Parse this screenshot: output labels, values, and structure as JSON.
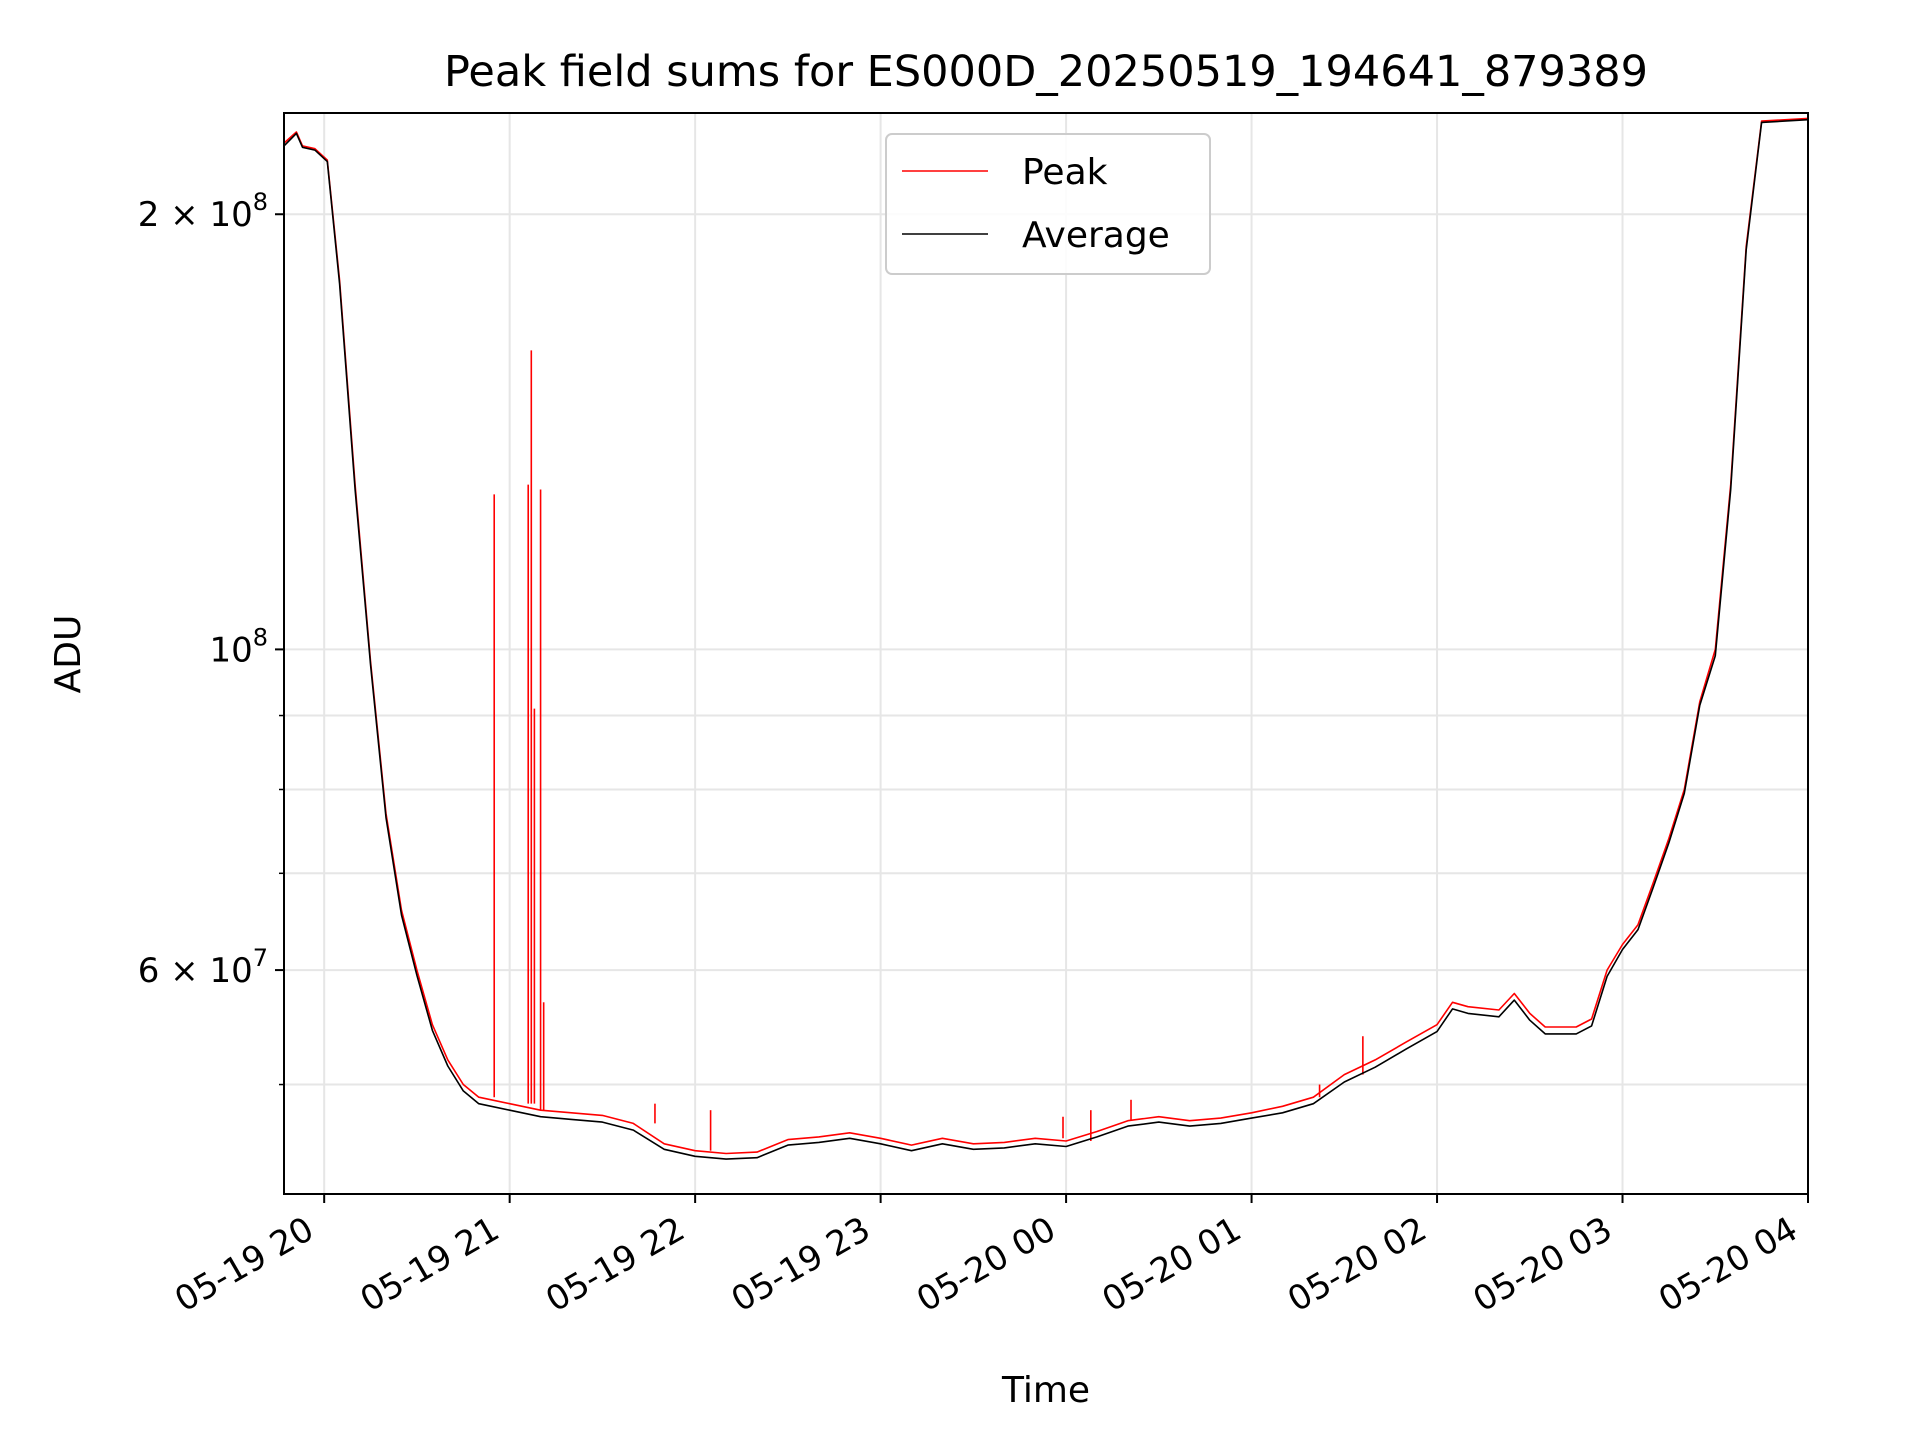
{
  "chart_data": {
    "type": "line",
    "title": "Peak field sums for ES000D_20250519_194641_879389",
    "xlabel": "Time",
    "ylabel": "ADU",
    "yscale": "log",
    "xlim": [
      "2025-05-19T19:47",
      "2025-05-20T04:00"
    ],
    "ylim": [
      42000000,
      235000000
    ],
    "x_ticks": [
      "05-19 20",
      "05-19 21",
      "05-19 22",
      "05-19 23",
      "05-20 00",
      "05-20 01",
      "05-20 02",
      "05-20 03",
      "05-20 04"
    ],
    "y_major_ticks": [
      {
        "value": 100000000,
        "mantissa": "",
        "base": "10",
        "exp": "8"
      },
      {
        "value": 200000000,
        "mantissa": "2 × ",
        "base": "10",
        "exp": "8"
      },
      {
        "value": 60000000,
        "mantissa": "6 × ",
        "base": "10",
        "exp": "7"
      }
    ],
    "y_minor_ticks": [
      50000000,
      70000000,
      80000000,
      90000000
    ],
    "grid": true,
    "legend_position": "top-center",
    "series": [
      {
        "name": "Peak",
        "color": "#ff0000",
        "points": [
          [
            "2025-05-19T19:47",
            224000000
          ],
          [
            "2025-05-19T19:51",
            228000000
          ],
          [
            "2025-05-19T19:53",
            223000000
          ],
          [
            "2025-05-19T19:57",
            222000000
          ],
          [
            "2025-05-19T20:01",
            218000000
          ],
          [
            "2025-05-19T20:05",
            180000000
          ],
          [
            "2025-05-19T20:10",
            130000000
          ],
          [
            "2025-05-19T20:15",
            98000000
          ],
          [
            "2025-05-19T20:20",
            77000000
          ],
          [
            "2025-05-19T20:25",
            66000000
          ],
          [
            "2025-05-19T20:30",
            60000000
          ],
          [
            "2025-05-19T20:35",
            55000000
          ],
          [
            "2025-05-19T20:40",
            52000000
          ],
          [
            "2025-05-19T20:45",
            50000000
          ],
          [
            "2025-05-19T20:50",
            49000000
          ],
          [
            "2025-05-19T21:00",
            48500000
          ],
          [
            "2025-05-19T21:10",
            48000000
          ],
          [
            "2025-05-19T21:20",
            47800000
          ],
          [
            "2025-05-19T21:30",
            47600000
          ],
          [
            "2025-05-19T21:40",
            47000000
          ],
          [
            "2025-05-19T21:50",
            45500000
          ],
          [
            "2025-05-19T22:00",
            45000000
          ],
          [
            "2025-05-19T22:10",
            44800000
          ],
          [
            "2025-05-19T22:20",
            44900000
          ],
          [
            "2025-05-19T22:30",
            45800000
          ],
          [
            "2025-05-19T22:40",
            46000000
          ],
          [
            "2025-05-19T22:50",
            46300000
          ],
          [
            "2025-05-19T23:00",
            45900000
          ],
          [
            "2025-05-19T23:10",
            45400000
          ],
          [
            "2025-05-19T23:20",
            45900000
          ],
          [
            "2025-05-19T23:30",
            45500000
          ],
          [
            "2025-05-19T23:40",
            45600000
          ],
          [
            "2025-05-19T23:50",
            45900000
          ],
          [
            "2025-05-20T00:00",
            45700000
          ],
          [
            "2025-05-20T00:10",
            46400000
          ],
          [
            "2025-05-20T00:20",
            47200000
          ],
          [
            "2025-05-20T00:30",
            47500000
          ],
          [
            "2025-05-20T00:40",
            47200000
          ],
          [
            "2025-05-20T00:50",
            47400000
          ],
          [
            "2025-05-20T01:00",
            47800000
          ],
          [
            "2025-05-20T01:10",
            48300000
          ],
          [
            "2025-05-20T01:20",
            49000000
          ],
          [
            "2025-05-20T01:30",
            50800000
          ],
          [
            "2025-05-20T01:40",
            52000000
          ],
          [
            "2025-05-20T01:50",
            53500000
          ],
          [
            "2025-05-20T02:00",
            55000000
          ],
          [
            "2025-05-20T02:05",
            57000000
          ],
          [
            "2025-05-20T02:10",
            56600000
          ],
          [
            "2025-05-20T02:20",
            56300000
          ],
          [
            "2025-05-20T02:25",
            57800000
          ],
          [
            "2025-05-20T02:30",
            56000000
          ],
          [
            "2025-05-20T02:35",
            54800000
          ],
          [
            "2025-05-20T02:45",
            54800000
          ],
          [
            "2025-05-20T02:50",
            55500000
          ],
          [
            "2025-05-20T02:55",
            60000000
          ],
          [
            "2025-05-20T03:00",
            62500000
          ],
          [
            "2025-05-20T03:05",
            64500000
          ],
          [
            "2025-05-20T03:10",
            69000000
          ],
          [
            "2025-05-20T03:15",
            74000000
          ],
          [
            "2025-05-20T03:20",
            80000000
          ],
          [
            "2025-05-20T03:25",
            92000000
          ],
          [
            "2025-05-20T03:30",
            100000000
          ],
          [
            "2025-05-20T03:35",
            130000000
          ],
          [
            "2025-05-20T03:40",
            190000000
          ],
          [
            "2025-05-20T03:45",
            232000000
          ],
          [
            "2025-05-20T04:00",
            233000000
          ]
        ],
        "spikes": [
          [
            "2025-05-19T20:55",
            128000000
          ],
          [
            "2025-05-19T21:06",
            130000000
          ],
          [
            "2025-05-19T21:07",
            161000000
          ],
          [
            "2025-05-19T21:08",
            91000000
          ],
          [
            "2025-05-19T21:10",
            129000000
          ],
          [
            "2025-05-19T21:11",
            57000000
          ],
          [
            "2025-05-19T21:47",
            48500000
          ],
          [
            "2025-05-19T22:05",
            48000000
          ],
          [
            "2025-05-19T23:59",
            47500000
          ],
          [
            "2025-05-20T00:08",
            48000000
          ],
          [
            "2025-05-20T00:21",
            48800000
          ],
          [
            "2025-05-20T01:22",
            50000000
          ],
          [
            "2025-05-20T01:36",
            54000000
          ]
        ]
      },
      {
        "name": "Average",
        "color": "#000000",
        "points": [
          [
            "2025-05-19T19:47",
            223000000
          ],
          [
            "2025-05-19T19:51",
            227500000
          ],
          [
            "2025-05-19T19:53",
            222500000
          ],
          [
            "2025-05-19T19:57",
            221500000
          ],
          [
            "2025-05-19T20:01",
            217500000
          ],
          [
            "2025-05-19T20:05",
            179000000
          ],
          [
            "2025-05-19T20:10",
            129000000
          ],
          [
            "2025-05-19T20:15",
            97500000
          ],
          [
            "2025-05-19T20:20",
            76500000
          ],
          [
            "2025-05-19T20:25",
            65500000
          ],
          [
            "2025-05-19T20:30",
            59500000
          ],
          [
            "2025-05-19T20:35",
            54500000
          ],
          [
            "2025-05-19T20:40",
            51500000
          ],
          [
            "2025-05-19T20:45",
            49500000
          ],
          [
            "2025-05-19T20:50",
            48500000
          ],
          [
            "2025-05-19T21:00",
            48000000
          ],
          [
            "2025-05-19T21:10",
            47500000
          ],
          [
            "2025-05-19T21:20",
            47300000
          ],
          [
            "2025-05-19T21:30",
            47100000
          ],
          [
            "2025-05-19T21:40",
            46500000
          ],
          [
            "2025-05-19T21:50",
            45100000
          ],
          [
            "2025-05-19T22:00",
            44600000
          ],
          [
            "2025-05-19T22:10",
            44400000
          ],
          [
            "2025-05-19T22:20",
            44500000
          ],
          [
            "2025-05-19T22:30",
            45400000
          ],
          [
            "2025-05-19T22:40",
            45600000
          ],
          [
            "2025-05-19T22:50",
            45900000
          ],
          [
            "2025-05-19T23:00",
            45500000
          ],
          [
            "2025-05-19T23:10",
            45000000
          ],
          [
            "2025-05-19T23:20",
            45500000
          ],
          [
            "2025-05-19T23:30",
            45100000
          ],
          [
            "2025-05-19T23:40",
            45200000
          ],
          [
            "2025-05-19T23:50",
            45500000
          ],
          [
            "2025-05-20T00:00",
            45300000
          ],
          [
            "2025-05-20T00:10",
            46000000
          ],
          [
            "2025-05-20T00:20",
            46800000
          ],
          [
            "2025-05-20T00:30",
            47100000
          ],
          [
            "2025-05-20T00:40",
            46800000
          ],
          [
            "2025-05-20T00:50",
            47000000
          ],
          [
            "2025-05-20T01:00",
            47400000
          ],
          [
            "2025-05-20T01:10",
            47800000
          ],
          [
            "2025-05-20T01:20",
            48500000
          ],
          [
            "2025-05-20T01:30",
            50200000
          ],
          [
            "2025-05-20T01:40",
            51400000
          ],
          [
            "2025-05-20T01:50",
            52900000
          ],
          [
            "2025-05-20T02:00",
            54400000
          ],
          [
            "2025-05-20T02:05",
            56400000
          ],
          [
            "2025-05-20T02:10",
            56000000
          ],
          [
            "2025-05-20T02:20",
            55700000
          ],
          [
            "2025-05-20T02:25",
            57200000
          ],
          [
            "2025-05-20T02:30",
            55400000
          ],
          [
            "2025-05-20T02:35",
            54200000
          ],
          [
            "2025-05-20T02:45",
            54200000
          ],
          [
            "2025-05-20T02:50",
            54900000
          ],
          [
            "2025-05-20T02:55",
            59400000
          ],
          [
            "2025-05-20T03:00",
            62000000
          ],
          [
            "2025-05-20T03:05",
            64000000
          ],
          [
            "2025-05-20T03:10",
            68500000
          ],
          [
            "2025-05-20T03:15",
            73500000
          ],
          [
            "2025-05-20T03:20",
            79500000
          ],
          [
            "2025-05-20T03:25",
            91500000
          ],
          [
            "2025-05-20T03:30",
            99000000
          ],
          [
            "2025-05-20T03:35",
            129000000
          ],
          [
            "2025-05-20T03:40",
            189000000
          ],
          [
            "2025-05-20T03:45",
            231500000
          ],
          [
            "2025-05-20T04:00",
            232500000
          ]
        ]
      }
    ]
  }
}
